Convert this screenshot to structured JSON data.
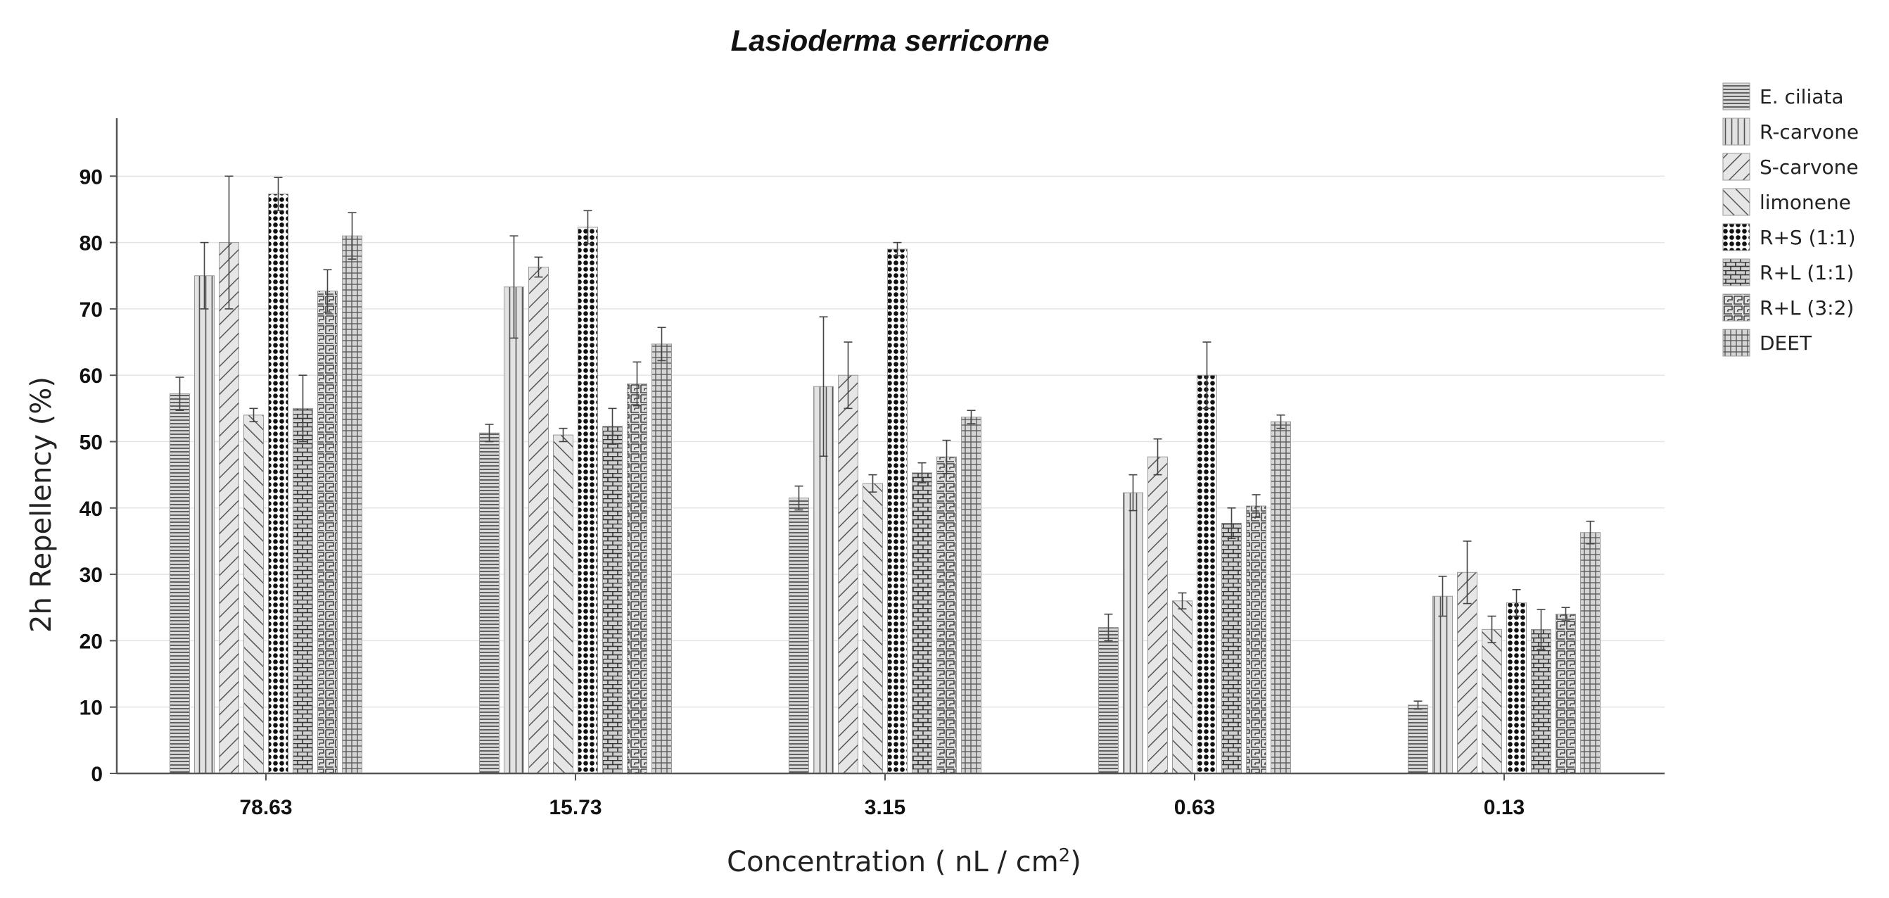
{
  "chart_data": {
    "type": "bar",
    "title": "Lasioderma serricorne",
    "xlabel": "Concentration ( nL / cm",
    "xlabel_superscript": "2",
    "xlabel_suffix": ")",
    "ylabel": "2h Repellency (%)",
    "ylim": [
      0,
      99
    ],
    "yticks": [
      0,
      10,
      20,
      30,
      40,
      50,
      60,
      70,
      80,
      90
    ],
    "grid": true,
    "legend_position": "right",
    "categories": [
      "78.63",
      "15.73",
      "3.15",
      "0.63",
      "0.13"
    ],
    "series": [
      {
        "name": "E. ciliata",
        "pattern": "hlines",
        "values": [
          57.2,
          51.3,
          41.5,
          22.0,
          10.3
        ],
        "errors": [
          2.5,
          1.3,
          1.8,
          2.0,
          0.6
        ]
      },
      {
        "name": "R-carvone",
        "pattern": "vlines",
        "values": [
          75.0,
          73.3,
          58.3,
          42.3,
          26.7
        ],
        "errors": [
          5.0,
          7.7,
          10.5,
          2.7,
          3.0
        ]
      },
      {
        "name": "S-carvone",
        "pattern": "fdiag",
        "values": [
          80.0,
          76.3,
          60.0,
          47.7,
          30.3
        ],
        "errors": [
          10.0,
          1.5,
          5.0,
          2.7,
          4.7
        ]
      },
      {
        "name": "limonene",
        "pattern": "bdiag",
        "values": [
          54.0,
          51.0,
          43.7,
          26.0,
          21.7
        ],
        "errors": [
          1.0,
          1.0,
          1.3,
          1.2,
          2.0
        ]
      },
      {
        "name": "R+S (1:1)",
        "pattern": "dots",
        "values": [
          87.3,
          82.3,
          79.0,
          60.0,
          25.7
        ],
        "errors": [
          2.5,
          2.5,
          1.0,
          5.0,
          2.0
        ]
      },
      {
        "name": "R+L (1:1)",
        "pattern": "bricks",
        "values": [
          55.0,
          52.3,
          45.3,
          37.7,
          21.7
        ],
        "errors": [
          5.0,
          2.7,
          1.5,
          2.3,
          3.0
        ]
      },
      {
        "name": "R+L (3:2)",
        "pattern": "maze",
        "values": [
          72.7,
          58.7,
          47.7,
          40.3,
          24.0
        ],
        "errors": [
          3.2,
          3.3,
          2.5,
          1.7,
          1.0
        ]
      },
      {
        "name": "DEET",
        "pattern": "cross",
        "values": [
          81.0,
          64.7,
          53.7,
          53.0,
          36.3
        ],
        "errors": [
          3.5,
          2.5,
          1.0,
          1.0,
          1.7
        ]
      }
    ]
  }
}
